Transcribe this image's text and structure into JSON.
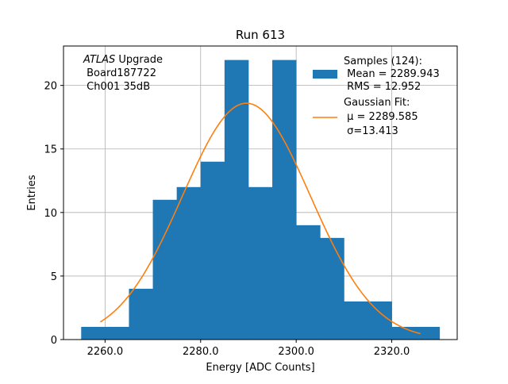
{
  "chart_data": {
    "type": "bar",
    "title": "Run 613",
    "xlabel": "Energy [ADC Counts]",
    "ylabel": "Entries",
    "xlim": [
      2251.3,
      2333.7
    ],
    "ylim": [
      0,
      23.1
    ],
    "grid": true,
    "x_ticks": [
      2260.0,
      2280.0,
      2300.0,
      2320.0
    ],
    "x_tick_labels": [
      "2260.0",
      "2280.0",
      "2300.0",
      "2320.0"
    ],
    "y_ticks": [
      0,
      5,
      10,
      15,
      20
    ],
    "y_tick_labels": [
      "0",
      "5",
      "10",
      "15",
      "20"
    ],
    "bar_color": "#1f77b4",
    "fit_color": "#ff7f0e",
    "bins": [
      {
        "x0": 2255,
        "x1": 2260,
        "count": 1
      },
      {
        "x0": 2260,
        "x1": 2265,
        "count": 1
      },
      {
        "x0": 2265,
        "x1": 2270,
        "count": 4
      },
      {
        "x0": 2270,
        "x1": 2275,
        "count": 11
      },
      {
        "x0": 2275,
        "x1": 2280,
        "count": 12
      },
      {
        "x0": 2280,
        "x1": 2285,
        "count": 14
      },
      {
        "x0": 2285,
        "x1": 2290,
        "count": 22
      },
      {
        "x0": 2290,
        "x1": 2295,
        "count": 12
      },
      {
        "x0": 2295,
        "x1": 2300,
        "count": 22
      },
      {
        "x0": 2300,
        "x1": 2305,
        "count": 9
      },
      {
        "x0": 2305,
        "x1": 2310,
        "count": 8
      },
      {
        "x0": 2310,
        "x1": 2315,
        "count": 3
      },
      {
        "x0": 2315,
        "x1": 2320,
        "count": 3
      },
      {
        "x0": 2320,
        "x1": 2325,
        "count": 1
      },
      {
        "x0": 2325,
        "x1": 2330,
        "count": 1
      }
    ],
    "fit": {
      "mu": 2289.585,
      "sigma": 13.413,
      "amplitude": 18.6,
      "x_range": [
        2259.0,
        2326.0
      ]
    },
    "annotation": {
      "line1_italic": "ATLAS",
      "line1_rest": " Upgrade",
      "line2": " Board187722",
      "line3": " Ch001 35dB"
    },
    "legend": {
      "placement": "top-right",
      "hist_lines": [
        "Samples (124):",
        " Mean = 2289.943",
        " RMS = 12.952"
      ],
      "fit_lines": [
        "Gaussian Fit:",
        " μ = 2289.585",
        " σ=13.413"
      ]
    }
  }
}
